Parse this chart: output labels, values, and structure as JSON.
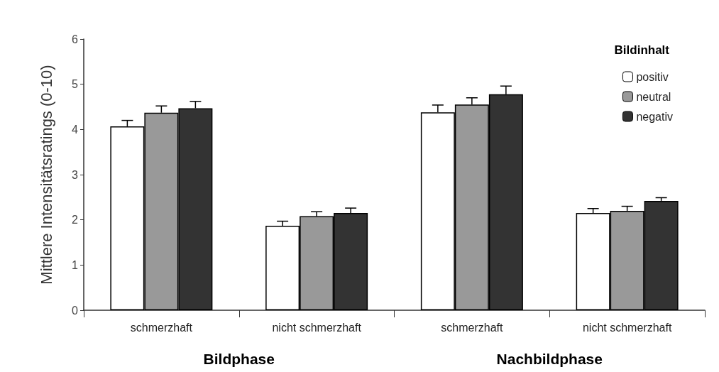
{
  "chart_data": {
    "type": "bar",
    "categories": [
      "schmerzhaft",
      "nicht schmerzhaft",
      "schmerzhaft",
      "nicht schmerzhaft"
    ],
    "series": [
      {
        "name": "positiv",
        "color": "#ffffff",
        "values": [
          4.07,
          1.87,
          4.38,
          2.15
        ],
        "errors": [
          [
            4.07,
            4.2
          ],
          [
            1.87,
            1.97
          ],
          [
            4.38,
            4.54
          ],
          [
            2.15,
            2.25
          ]
        ]
      },
      {
        "name": "neutral",
        "color": "#999999",
        "values": [
          4.37,
          2.08,
          4.55,
          2.2
        ],
        "errors": [
          [
            4.37,
            4.52
          ],
          [
            2.08,
            2.18
          ],
          [
            4.55,
            4.7
          ],
          [
            2.2,
            2.3
          ]
        ]
      },
      {
        "name": "negativ",
        "color": "#333333",
        "values": [
          4.47,
          2.15,
          4.78,
          2.42
        ],
        "errors": [
          [
            4.47,
            4.62
          ],
          [
            2.15,
            2.26
          ],
          [
            4.78,
            4.96
          ],
          [
            2.42,
            2.49
          ]
        ]
      }
    ],
    "ylabel": "Mittlere Intensitätsratings (0-10)",
    "legend_title": "Bildinhalt",
    "annotations": [
      "Bildphase",
      "Nachbildphase"
    ],
    "ylim": [
      0,
      6
    ],
    "yticks": [
      0,
      1,
      2,
      3,
      4,
      5,
      6
    ],
    "grid": false,
    "legend": "top right"
  }
}
